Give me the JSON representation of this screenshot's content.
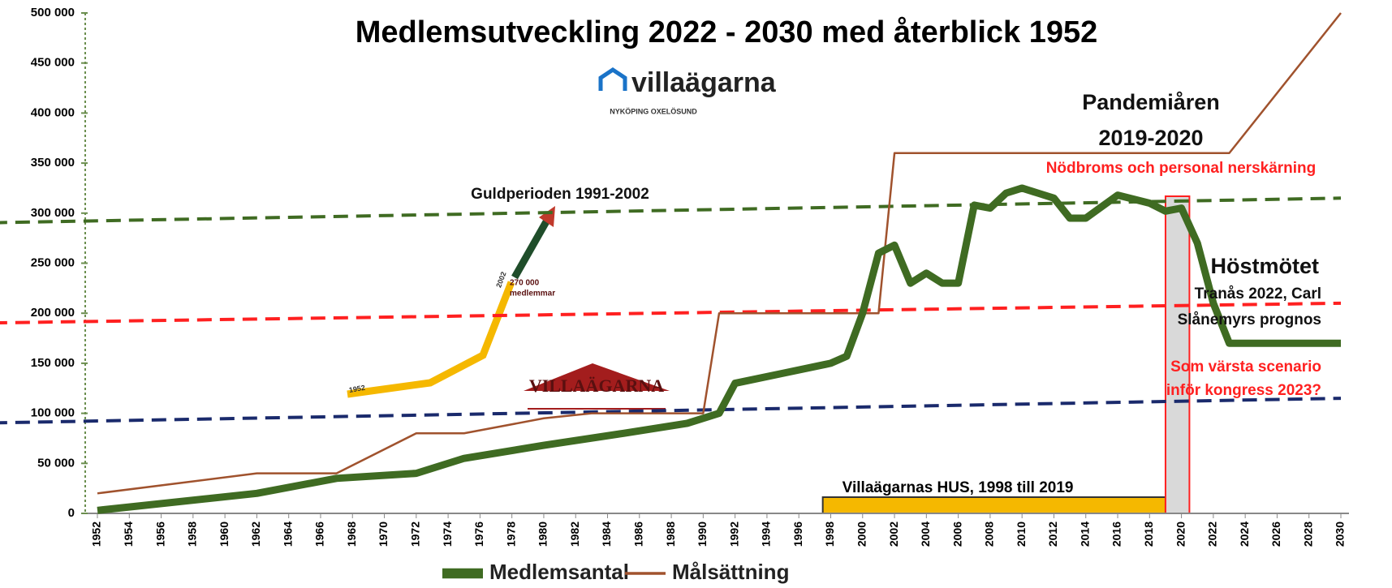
{
  "chart_data": {
    "type": "line",
    "title": "Medlemsutveckling 2022 - 2030 med återblick 1952",
    "xlim": [
      1952,
      2030
    ],
    "xticks": [
      1952,
      1954,
      1956,
      1958,
      1960,
      1962,
      1964,
      1966,
      1968,
      1970,
      1972,
      1974,
      1976,
      1978,
      1980,
      1982,
      1984,
      1986,
      1988,
      1990,
      1992,
      1994,
      1996,
      1998,
      2000,
      2002,
      2004,
      2006,
      2008,
      2010,
      2012,
      2014,
      2016,
      2018,
      2020,
      2022,
      2024,
      2026,
      2028,
      2030
    ],
    "ylim": [
      0,
      500000
    ],
    "yticks": [
      0,
      {
        "value": 50000,
        "label": "50 000"
      },
      {
        "value": 100000,
        "label": "100 000"
      },
      {
        "value": 150000,
        "label": "150 000"
      },
      {
        "value": 200000,
        "label": "200 000"
      },
      {
        "value": 250000,
        "label": "250 000"
      },
      {
        "value": 300000,
        "label": "300 000"
      },
      {
        "value": 350000,
        "label": "350 000"
      },
      {
        "value": 400000,
        "label": "400 000"
      },
      {
        "value": 450000,
        "label": "450 000"
      },
      {
        "value": 500000,
        "label": "500 000"
      }
    ],
    "series": [
      {
        "name": "Medlemsantal",
        "color": "#3f6b22",
        "x": [
          1952,
          1962,
          1967,
          1972,
          1975,
          1980,
          1985,
          1989,
          1991,
          1992,
          1995,
          1998,
          1999,
          2000,
          2001,
          2002,
          2003,
          2004,
          2005,
          2006,
          2007,
          2008,
          2009,
          2010,
          2011,
          2012,
          2013,
          2014,
          2016,
          2018,
          2019,
          2020,
          2021,
          2022,
          2023,
          2030
        ],
        "values": [
          3000,
          20000,
          35000,
          40000,
          55000,
          68000,
          80000,
          90000,
          100000,
          130000,
          140000,
          150000,
          157000,
          200000,
          260000,
          268000,
          230000,
          240000,
          230000,
          230000,
          308000,
          305000,
          320000,
          325000,
          320000,
          315000,
          295000,
          295000,
          318000,
          310000,
          302000,
          305000,
          270000,
          210000,
          170000,
          170000
        ]
      },
      {
        "name": "Målsättning",
        "color": "#a0522d",
        "x": [
          1952,
          1962,
          1967,
          1972,
          1975,
          1980,
          1983,
          1990,
          1991,
          2001,
          2002,
          2023,
          2030
        ],
        "values": [
          20000,
          40000,
          40000,
          80000,
          80000,
          95000,
          100000,
          100000,
          200000,
          200000,
          360000,
          360000,
          500000
        ]
      }
    ],
    "reference_lines": [
      {
        "color": "#3f6b22",
        "x": [
          1944,
          2030
        ],
        "values": [
          290000,
          315000
        ]
      },
      {
        "color": "#ff2020",
        "x": [
          1944,
          2030
        ],
        "values": [
          190000,
          210000
        ]
      },
      {
        "color": "#1a2a6c",
        "x": [
          1944,
          2030
        ],
        "values": [
          90000,
          115000
        ]
      }
    ],
    "spans": [
      {
        "label": "Villaägarnas HUS, 1998 till 2019",
        "x": [
          1997.5,
          2019
        ],
        "color": "#f5b800"
      },
      {
        "x": [
          2019,
          2020.5
        ],
        "color": "#d9d9d9"
      }
    ],
    "annotations": [
      "villaägarna",
      "NYKÖPING OXELÖSUND",
      "Guldperioden 1991-2002",
      "Pandemiåren",
      "2019-2020",
      "Nödbroms och personal nerskärning",
      "Höstmötet",
      "Tranås 2022, Carl",
      "Slånemyrs prognos",
      "Som värsta scenario",
      "inför kongress 2023?",
      "1952",
      "2002",
      "270 000",
      "medlemmar",
      "VILLAÄGARNA"
    ]
  }
}
